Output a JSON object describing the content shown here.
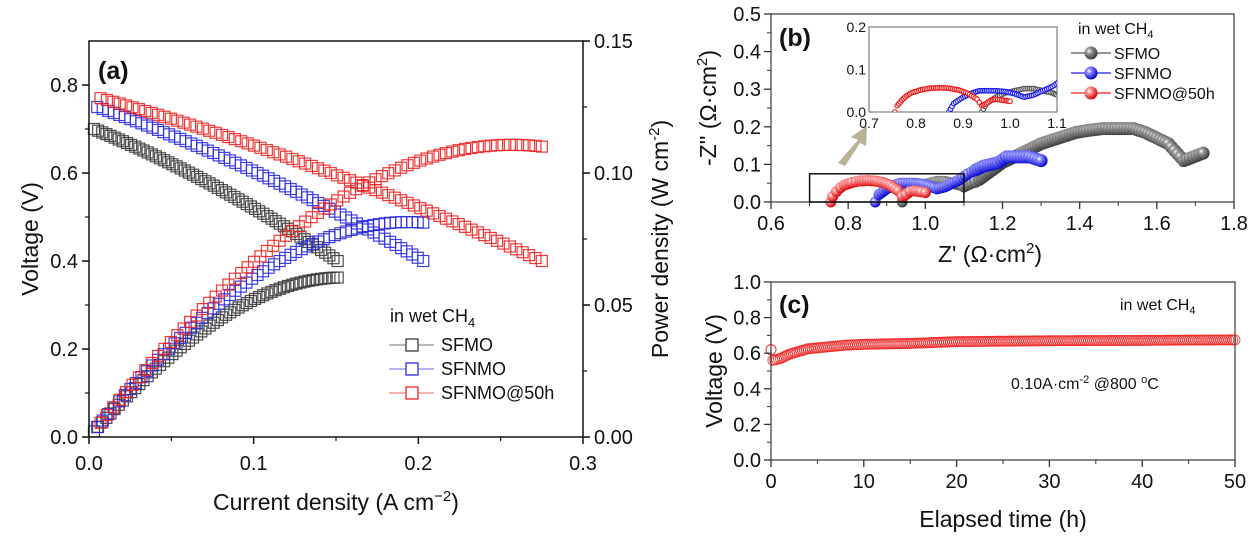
{
  "chart_data": [
    {
      "panel": "a",
      "type": "scatter",
      "panel_label": "(a)",
      "xlabel": "Current density (A cm",
      "xlabel_sup": "−2",
      "xlabel_end": ")",
      "ylabel": "Voltage (V)",
      "y2label": "Power density (W cm",
      "y2label_sup": "-2",
      "y2label_end": ")",
      "xlim": [
        0.0,
        0.3
      ],
      "ylim": [
        0.0,
        0.9
      ],
      "y2lim": [
        0.0,
        0.15
      ],
      "xticks": [
        "0.0",
        "0.1",
        "0.2",
        "0.3"
      ],
      "xtick_values": [
        0.0,
        0.1,
        0.2,
        0.3
      ],
      "yticks": [
        "0.0",
        "0.2",
        "0.4",
        "0.6",
        "0.8"
      ],
      "ytick_values": [
        0.0,
        0.2,
        0.4,
        0.6,
        0.8
      ],
      "y2ticks": [
        "0.00",
        "0.05",
        "0.10",
        "0.15"
      ],
      "y2tick_values": [
        0.0,
        0.05,
        0.1,
        0.15
      ],
      "marker": "open-square",
      "legend": {
        "title": "in wet CH",
        "title_sub": "4",
        "placement": "lower-right",
        "entries": [
          "SFMO",
          "SFNMO",
          "SFNMO@50h"
        ]
      },
      "series": [
        {
          "name": "SFMO",
          "color": "#3a3a3a",
          "voltage": {
            "x_start": 0.003,
            "x_end": 0.151,
            "n": 60,
            "v_start": 0.7,
            "v_end": 0.4,
            "curvature": 0.06
          },
          "power": {
            "x_start": 0.003,
            "x_end": 0.151,
            "n": 60,
            "p_end": 0.06
          }
        },
        {
          "name": "SFNMO",
          "color": "#2a2ae0",
          "voltage": {
            "x_start": 0.005,
            "x_end": 0.203,
            "n": 60,
            "v_start": 0.75,
            "v_end": 0.4,
            "curvature": 0.06
          },
          "power": {
            "x_start": 0.005,
            "x_end": 0.203,
            "n": 60,
            "p_end": 0.081
          }
        },
        {
          "name": "SFNMO@50h",
          "color": "#ee2222",
          "voltage": {
            "x_start": 0.007,
            "x_end": 0.275,
            "n": 70,
            "v_start": 0.77,
            "v_end": 0.4,
            "curvature": 0.08
          },
          "power": {
            "x_start": 0.007,
            "x_end": 0.275,
            "n": 70,
            "p_end": 0.109
          }
        }
      ]
    },
    {
      "panel": "b",
      "type": "scatter",
      "panel_label": "(b)",
      "xlabel": "Z' (Ω·cm",
      "xlabel_sup": "2",
      "xlabel_end": ")",
      "ylabel": "-Z'' (Ω·cm",
      "ylabel_sup": "2",
      "ylabel_end": ")",
      "xlim": [
        0.6,
        1.8
      ],
      "ylim": [
        0.0,
        0.5
      ],
      "xticks": [
        "0.6",
        "0.8",
        "1.0",
        "1.2",
        "1.4",
        "1.6",
        "1.8"
      ],
      "xtick_values": [
        0.6,
        0.8,
        1.0,
        1.2,
        1.4,
        1.6,
        1.8
      ],
      "yticks": [
        "0.0",
        "0.1",
        "0.2",
        "0.3",
        "0.4",
        "0.5"
      ],
      "ytick_values": [
        0.0,
        0.1,
        0.2,
        0.3,
        0.4,
        0.5
      ],
      "marker": "filled-sphere",
      "legend": {
        "title": "in wet CH",
        "title_sub": "4",
        "placement": "top-right",
        "entries": [
          "SFMO",
          "SFNMO",
          "SFNMO@50h"
        ]
      },
      "zoom_box": {
        "x_range": [
          0.7,
          1.1
        ],
        "y_range": [
          0.0,
          0.075
        ]
      },
      "inset": {
        "xlim": [
          0.7,
          1.1
        ],
        "ylim": [
          0.0,
          0.2
        ],
        "xticks": [
          "0.7",
          "0.8",
          "0.9",
          "1.0",
          "1.1"
        ],
        "xtick_values": [
          0.7,
          0.8,
          0.9,
          1.0,
          1.1
        ],
        "yticks": [
          "0.0",
          "0.1",
          "0.2"
        ],
        "ytick_values": [
          0.0,
          0.1,
          0.2
        ]
      },
      "series": [
        {
          "name": "SFMO",
          "color": "#555555",
          "points": [
            [
              0.94,
              0.0
            ],
            [
              0.95,
              0.02
            ],
            [
              0.97,
              0.035
            ],
            [
              0.99,
              0.045
            ],
            [
              1.01,
              0.05
            ],
            [
              1.03,
              0.055
            ],
            [
              1.05,
              0.055
            ],
            [
              1.07,
              0.05
            ],
            [
              1.09,
              0.045
            ],
            [
              1.1,
              0.04
            ],
            [
              1.12,
              0.05
            ],
            [
              1.14,
              0.06
            ],
            [
              1.16,
              0.075
            ],
            [
              1.18,
              0.09
            ],
            [
              1.2,
              0.105
            ],
            [
              1.22,
              0.115
            ],
            [
              1.24,
              0.125
            ],
            [
              1.26,
              0.135
            ],
            [
              1.28,
              0.145
            ],
            [
              1.3,
              0.155
            ],
            [
              1.33,
              0.165
            ],
            [
              1.36,
              0.175
            ],
            [
              1.39,
              0.185
            ],
            [
              1.42,
              0.19
            ],
            [
              1.46,
              0.195
            ],
            [
              1.5,
              0.195
            ],
            [
              1.54,
              0.195
            ],
            [
              1.57,
              0.185
            ],
            [
              1.6,
              0.17
            ],
            [
              1.63,
              0.155
            ],
            [
              1.67,
              0.11
            ],
            [
              1.72,
              0.13
            ]
          ]
        },
        {
          "name": "SFNMO",
          "color": "#1a1af0",
          "points": [
            [
              0.87,
              0.0
            ],
            [
              0.88,
              0.02
            ],
            [
              0.9,
              0.035
            ],
            [
              0.92,
              0.045
            ],
            [
              0.935,
              0.05
            ],
            [
              0.95,
              0.05
            ],
            [
              0.97,
              0.05
            ],
            [
              0.99,
              0.048
            ],
            [
              1.01,
              0.043
            ],
            [
              1.03,
              0.035
            ],
            [
              1.05,
              0.04
            ],
            [
              1.07,
              0.05
            ],
            [
              1.09,
              0.06
            ],
            [
              1.11,
              0.075
            ],
            [
              1.13,
              0.085
            ],
            [
              1.15,
              0.095
            ],
            [
              1.17,
              0.1
            ],
            [
              1.19,
              0.105
            ],
            [
              1.21,
              0.12
            ],
            [
              1.24,
              0.12
            ],
            [
              1.27,
              0.12
            ],
            [
              1.3,
              0.11
            ]
          ]
        },
        {
          "name": "SFNMO@50h",
          "color": "#ee1a1a",
          "points": [
            [
              0.755,
              0.0
            ],
            [
              0.76,
              0.015
            ],
            [
              0.77,
              0.028
            ],
            [
              0.78,
              0.038
            ],
            [
              0.79,
              0.045
            ],
            [
              0.81,
              0.052
            ],
            [
              0.83,
              0.056
            ],
            [
              0.85,
              0.057
            ],
            [
              0.87,
              0.056
            ],
            [
              0.89,
              0.052
            ],
            [
              0.91,
              0.044
            ],
            [
              0.93,
              0.03
            ],
            [
              0.94,
              0.015
            ],
            [
              0.95,
              0.02
            ],
            [
              0.96,
              0.028
            ],
            [
              0.97,
              0.03
            ],
            [
              0.99,
              0.027
            ],
            [
              1.0,
              0.025
            ]
          ]
        }
      ]
    },
    {
      "panel": "c",
      "type": "scatter",
      "panel_label": "(c)",
      "xlabel": "Elapsed time (h)",
      "ylabel": "Voltage (V)",
      "xlim": [
        0,
        50
      ],
      "ylim": [
        0.0,
        1.0
      ],
      "xticks": [
        "0",
        "10",
        "20",
        "30",
        "40",
        "50"
      ],
      "xtick_values": [
        0,
        10,
        20,
        30,
        40,
        50
      ],
      "yticks": [
        "0.0",
        "0.2",
        "0.4",
        "0.6",
        "0.8",
        "1.0"
      ],
      "ytick_values": [
        0.0,
        0.2,
        0.4,
        0.6,
        0.8,
        1.0
      ],
      "marker": "open-circle",
      "annotation_top": "in wet CH",
      "annotation_top_sub": "4",
      "annotation_condition": "0.10A·cm",
      "annotation_condition_sup": "-2",
      "annotation_condition_mid": " @800 ",
      "annotation_condition_sup2": "o",
      "annotation_condition_end": "C",
      "series": [
        {
          "name": "SFNMO",
          "color": "#ee2a2a",
          "first_point": [
            0.0,
            0.62
          ],
          "points": [
            [
              0.2,
              0.56
            ],
            [
              1,
              0.57
            ],
            [
              2,
              0.595
            ],
            [
              3,
              0.61
            ],
            [
              4,
              0.625
            ],
            [
              6,
              0.635
            ],
            [
              8,
              0.645
            ],
            [
              10,
              0.65
            ],
            [
              15,
              0.655
            ],
            [
              20,
              0.665
            ],
            [
              30,
              0.67
            ],
            [
              40,
              0.672
            ],
            [
              50,
              0.675
            ]
          ]
        }
      ]
    }
  ]
}
